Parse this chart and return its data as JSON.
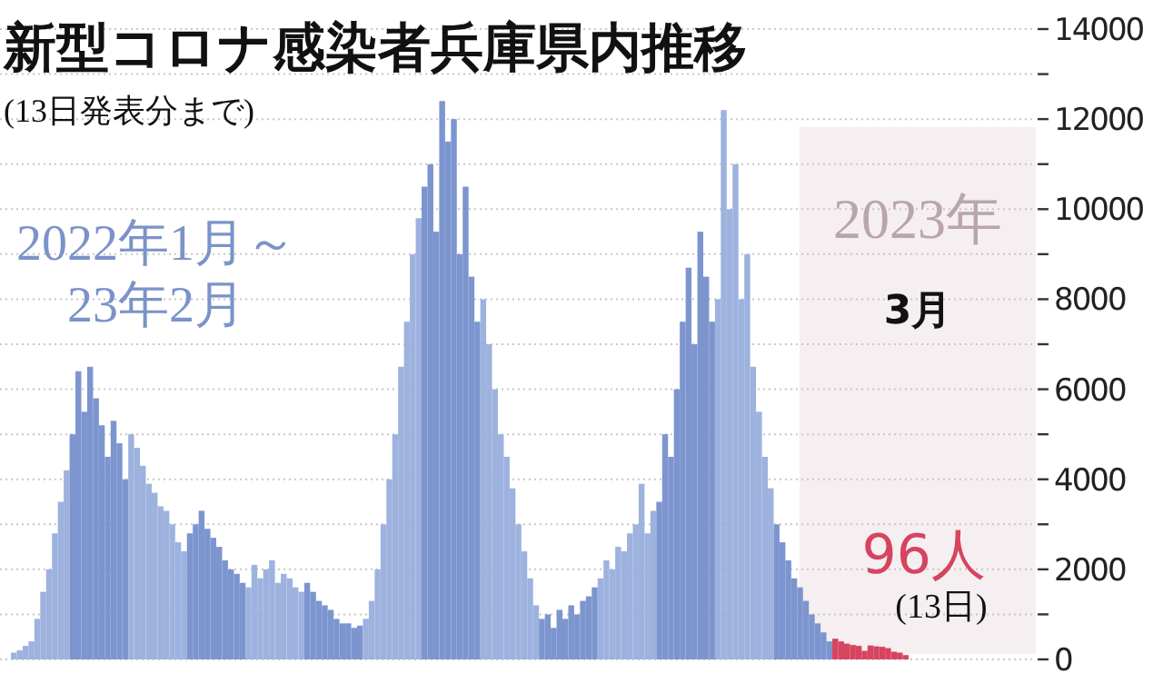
{
  "chart_data": {
    "type": "bar",
    "title": "新型コロナ感染者兵庫県内推移",
    "subtitle": "(13日発表分まで)",
    "annotations": [
      "2022年1月～",
      "23年2月",
      "2023年",
      "3月",
      "(13日)"
    ],
    "categories": [
      null,
      null,
      null,
      null,
      null,
      null,
      null,
      null,
      null,
      null,
      null,
      null,
      null,
      null,
      null,
      null,
      null,
      null,
      null,
      null,
      null,
      null,
      null,
      null,
      null,
      null,
      null,
      null,
      null,
      null,
      null,
      null,
      null,
      null,
      null,
      null,
      null,
      null,
      null,
      null,
      null,
      null,
      null,
      null,
      null,
      null,
      null,
      null,
      null,
      null,
      null,
      null,
      null,
      null,
      null,
      null,
      null,
      null,
      null,
      null,
      null,
      null,
      null,
      null,
      null,
      null,
      null,
      null,
      null,
      null,
      null,
      null,
      null,
      null,
      null,
      null,
      null,
      null,
      null,
      null,
      null,
      null,
      null,
      null,
      null,
      null,
      null,
      null,
      null,
      null,
      null,
      null,
      null,
      null,
      null,
      null,
      null,
      null,
      null,
      null,
      null,
      null,
      null,
      null,
      null,
      null,
      null,
      null,
      null,
      null,
      null,
      null,
      null,
      null,
      null,
      null,
      null,
      null,
      null,
      null,
      null,
      null,
      null,
      null,
      null,
      null,
      null,
      null,
      null,
      null,
      null,
      null,
      null,
      null,
      null,
      null,
      null,
      null,
      null,
      null,
      null,
      null,
      null,
      null,
      null,
      null,
      null,
      null,
      null,
      null,
      null,
      null,
      null
    ],
    "values": [
      150,
      200,
      300,
      400,
      900,
      1500,
      2000,
      2800,
      3500,
      4200,
      5000,
      6400,
      5500,
      6500,
      5800,
      5200,
      4500,
      5300,
      4800,
      4000,
      5000,
      4700,
      4300,
      3900,
      3700,
      3400,
      3300,
      3000,
      2600,
      2400,
      2800,
      3000,
      3300,
      2900,
      2700,
      2500,
      2200,
      2000,
      1900,
      1700,
      1600,
      2100,
      1800,
      2000,
      2200,
      1700,
      1900,
      1800,
      1600,
      1500,
      1700,
      1500,
      1300,
      1200,
      1100,
      900,
      800,
      800,
      700,
      750,
      900,
      1300,
      2000,
      3000,
      4000,
      5000,
      6500,
      7500,
      9000,
      9800,
      10500,
      11000,
      9500,
      12400,
      11500,
      12000,
      9000,
      10500,
      8500,
      7500,
      8000,
      7000,
      6000,
      5000,
      4500,
      3800,
      3000,
      2400,
      1800,
      1200,
      900,
      1000,
      700,
      1100,
      900,
      1200,
      1000,
      1300,
      1400,
      1600,
      1800,
      2200,
      2000,
      2500,
      2400,
      2800,
      3000,
      3900,
      2800,
      3300,
      3500,
      5000,
      4500,
      6000,
      7500,
      8700,
      7000,
      9500,
      8500,
      7500,
      8000,
      12200,
      10000,
      11000,
      8000,
      9000,
      6500,
      5500,
      4500,
      3800,
      3000,
      2600,
      2200,
      1800,
      1600,
      1300,
      1000,
      800,
      600,
      400,
      460,
      400,
      350,
      320,
      300,
      190,
      310,
      290,
      280,
      250,
      170,
      150,
      96
    ],
    "value_labels": [
      null,
      null,
      null,
      null,
      null,
      null,
      null,
      null,
      null,
      null,
      null,
      null,
      null,
      null,
      null,
      null,
      null,
      null,
      null,
      null,
      null,
      null,
      null,
      null,
      null,
      null,
      null,
      null,
      null,
      null,
      null,
      null,
      null,
      null,
      null,
      null,
      null,
      null,
      null,
      null,
      null,
      null,
      null,
      null,
      null,
      null,
      null,
      null,
      null,
      null,
      null,
      null,
      null,
      null,
      null,
      null,
      null,
      null,
      null,
      null,
      null,
      null,
      null,
      null,
      null,
      null,
      null,
      null,
      null,
      null,
      null,
      null,
      null,
      null,
      null,
      null,
      null,
      null,
      null,
      null,
      null,
      null,
      null,
      null,
      null,
      null,
      null,
      null,
      null,
      null,
      null,
      null,
      null,
      null,
      null,
      null,
      null,
      null,
      null,
      null,
      null,
      null,
      null,
      null,
      null,
      null,
      null,
      null,
      null,
      null,
      null,
      null,
      null,
      null,
      null,
      null,
      null,
      null,
      null,
      null,
      null,
      null,
      null,
      null,
      null,
      null,
      null,
      null,
      null,
      null,
      null,
      null,
      null,
      null,
      null,
      null,
      null,
      null,
      null,
      null,
      null,
      null,
      null,
      null,
      null,
      null,
      null,
      null,
      null,
      null,
      null,
      null,
      "96人"
    ],
    "colors": [
      "#9db2de",
      "#9db2de",
      "#9db2de",
      "#9db2de",
      "#9db2de",
      "#9db2de",
      "#9db2de",
      "#9db2de",
      "#9db2de",
      "#9db2de",
      "#7d95cf",
      "#7d95cf",
      "#7d95cf",
      "#7d95cf",
      "#7d95cf",
      "#7d95cf",
      "#7d95cf",
      "#7d95cf",
      "#7d95cf",
      "#7d95cf",
      "#9db2de",
      "#9db2de",
      "#9db2de",
      "#9db2de",
      "#9db2de",
      "#9db2de",
      "#9db2de",
      "#9db2de",
      "#9db2de",
      "#9db2de",
      "#7d95cf",
      "#7d95cf",
      "#7d95cf",
      "#7d95cf",
      "#7d95cf",
      "#7d95cf",
      "#7d95cf",
      "#7d95cf",
      "#7d95cf",
      "#7d95cf",
      "#9db2de",
      "#9db2de",
      "#9db2de",
      "#9db2de",
      "#9db2de",
      "#9db2de",
      "#9db2de",
      "#9db2de",
      "#9db2de",
      "#9db2de",
      "#7d95cf",
      "#7d95cf",
      "#7d95cf",
      "#7d95cf",
      "#7d95cf",
      "#7d95cf",
      "#7d95cf",
      "#7d95cf",
      "#7d95cf",
      "#7d95cf",
      "#9db2de",
      "#9db2de",
      "#9db2de",
      "#9db2de",
      "#9db2de",
      "#9db2de",
      "#9db2de",
      "#9db2de",
      "#9db2de",
      "#9db2de",
      "#7d95cf",
      "#7d95cf",
      "#7d95cf",
      "#7d95cf",
      "#7d95cf",
      "#7d95cf",
      "#7d95cf",
      "#7d95cf",
      "#7d95cf",
      "#7d95cf",
      "#9db2de",
      "#9db2de",
      "#9db2de",
      "#9db2de",
      "#9db2de",
      "#9db2de",
      "#9db2de",
      "#9db2de",
      "#9db2de",
      "#9db2de",
      "#7d95cf",
      "#7d95cf",
      "#7d95cf",
      "#7d95cf",
      "#7d95cf",
      "#7d95cf",
      "#7d95cf",
      "#7d95cf",
      "#7d95cf",
      "#7d95cf",
      "#9db2de",
      "#9db2de",
      "#9db2de",
      "#9db2de",
      "#9db2de",
      "#9db2de",
      "#9db2de",
      "#9db2de",
      "#9db2de",
      "#9db2de",
      "#7d95cf",
      "#7d95cf",
      "#7d95cf",
      "#7d95cf",
      "#7d95cf",
      "#7d95cf",
      "#7d95cf",
      "#7d95cf",
      "#7d95cf",
      "#7d95cf",
      "#9db2de",
      "#9db2de",
      "#9db2de",
      "#9db2de",
      "#9db2de",
      "#9db2de",
      "#9db2de",
      "#9db2de",
      "#9db2de",
      "#9db2de",
      "#7d95cf",
      "#7d95cf",
      "#7d95cf",
      "#7d95cf",
      "#7d95cf",
      "#7d95cf",
      "#7d95cf",
      "#7d95cf",
      "#7d95cf",
      "#7d95cf",
      "#d6445f",
      "#d6445f",
      "#d6445f",
      "#d6445f",
      "#d6445f",
      "#d6445f",
      "#d6445f",
      "#d6445f",
      "#d6445f",
      "#d6445f",
      "#d6445f",
      "#d6445f",
      "#d6445f"
    ],
    "ylim": [
      0,
      14000
    ],
    "yticks": [
      0,
      {
        "value": 1000,
        "label": null
      },
      2000,
      {
        "value": 3000,
        "label": null
      },
      4000,
      {
        "value": 5000,
        "label": null
      },
      6000,
      {
        "value": 7000,
        "label": null
      },
      8000,
      {
        "value": 9000,
        "label": null
      },
      10000,
      {
        "value": 11000,
        "label": null
      },
      12000,
      {
        "value": 13000,
        "label": null
      },
      14000
    ],
    "grid": "y"
  }
}
